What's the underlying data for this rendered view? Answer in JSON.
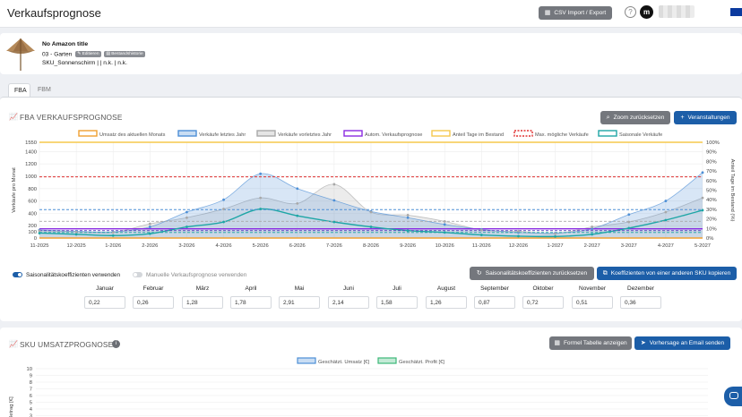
{
  "header": {
    "title": "Verkaufsprognose",
    "csv_button": "CSV Import / Export",
    "help_symbol": "?",
    "logo_text": "m"
  },
  "product": {
    "title": "No Amazon title",
    "category": "03 - Garten",
    "edit_tag": "Editieren",
    "history_tag": "Bestandshistorie",
    "sku_line": "SKU_Sonnenschirm | | n.k. | n.k."
  },
  "tabs": [
    {
      "label": "FBA",
      "active": true
    },
    {
      "label": "FBM",
      "active": false
    }
  ],
  "fba": {
    "title": "FBA VERKAUFSPROGNOSE",
    "zoom_reset": "Zoom zurücksetzen",
    "events_button": "Veranstaltungen",
    "seasonal_toggle_label": "Saisonalitätskoeffizienten verwenden",
    "seasonal_toggle_on": true,
    "manual_toggle_label": "Manuelle Verkaufsprognose verwenden",
    "manual_toggle_on": false,
    "reset_coef_button": "Saisonalitätskoeffizienten zurücksetzen",
    "copy_coef_button": "Koeffizienten von einer anderen SKU kopieren",
    "months": [
      {
        "label": "Januar",
        "value": "0,22"
      },
      {
        "label": "Februar",
        "value": "0,26"
      },
      {
        "label": "März",
        "value": "1,28"
      },
      {
        "label": "April",
        "value": "1,78"
      },
      {
        "label": "Mai",
        "value": "2,91"
      },
      {
        "label": "Juni",
        "value": "2,14"
      },
      {
        "label": "Juli",
        "value": "1,58"
      },
      {
        "label": "August",
        "value": "1,26"
      },
      {
        "label": "September",
        "value": "0,87"
      },
      {
        "label": "Oktober",
        "value": "0,72"
      },
      {
        "label": "November",
        "value": "0,51"
      },
      {
        "label": "Dezember",
        "value": "0,36"
      }
    ]
  },
  "sku": {
    "title": "SKU UMSATZPROGNOSE",
    "formula_button": "Formel Tabelle anzeigen",
    "email_button": "Vorhersage an Email senden"
  },
  "colors": {
    "primary": "#1c5ea8",
    "gray_button": "#74777d",
    "orange": "#f0a030",
    "blue": "#4d8fd6",
    "gray": "#a8a8a8",
    "purple": "#8a2be2",
    "yellow": "#f5c84c",
    "red": "#e03030",
    "teal": "#1ea6a6",
    "green": "#3cb878"
  },
  "chart_data": [
    {
      "type": "line",
      "title": "",
      "ylabel": "Verkäufe pro Monat",
      "y2label": "Anteil Tage im Bestand (%)",
      "ylim": [
        0,
        1550
      ],
      "yticks": [
        0,
        100,
        200,
        400,
        600,
        800,
        1000,
        1200,
        1400,
        1550
      ],
      "y2lim": [
        0,
        100
      ],
      "y2ticks": [
        "0%",
        "10%",
        "20%",
        "30%",
        "40%",
        "50%",
        "60%",
        "70%",
        "80%",
        "90%",
        "100%"
      ],
      "categories": [
        "11-2025",
        "12-2025",
        "1-2026",
        "2-2026",
        "3-2026",
        "4-2026",
        "5-2026",
        "6-2026",
        "7-2026",
        "8-2026",
        "9-2026",
        "10-2026",
        "11-2026",
        "12-2026",
        "1-2027",
        "2-2027",
        "3-2027",
        "4-2027",
        "5-2027"
      ],
      "grid": true,
      "legend": "top",
      "series": [
        {
          "name": "Umsatz des aktuellen Monats",
          "color": "#f0a030",
          "style": "line",
          "values": [
            0,
            0,
            0,
            0,
            0,
            0,
            0,
            0,
            0,
            0,
            0,
            0,
            0,
            0,
            0,
            0,
            0,
            0,
            0
          ]
        },
        {
          "name": "Verkäufe letztes Jahr",
          "color": "#4d8fd6",
          "style": "area",
          "values": [
            130,
            110,
            100,
            180,
            420,
            620,
            1040,
            800,
            610,
            430,
            330,
            220,
            140,
            90,
            80,
            150,
            380,
            600,
            1060
          ]
        },
        {
          "name": "Verkäufe vorletztes Jahr",
          "color": "#a8a8a8",
          "style": "area",
          "values": [
            120,
            100,
            90,
            230,
            330,
            470,
            650,
            560,
            870,
            420,
            370,
            270,
            130,
            110,
            70,
            180,
            260,
            420,
            650
          ]
        },
        {
          "name": "Autom. Verkaufsprognose",
          "color": "#8a2be2",
          "style": "line",
          "values": [
            150,
            150,
            150,
            150,
            150,
            150,
            150,
            150,
            150,
            150,
            150,
            150,
            150,
            150,
            150,
            150,
            150,
            150,
            150
          ]
        },
        {
          "name": "Anteil Tage im Bestand",
          "color": "#f5c84c",
          "style": "line",
          "axis": "right",
          "values": [
            100,
            100,
            100,
            100,
            100,
            100,
            100,
            100,
            100,
            100,
            100,
            100,
            100,
            100,
            100,
            100,
            100,
            100,
            100
          ]
        },
        {
          "name": "Max. mögliche Verkäufe",
          "color": "#e03030",
          "style": "dashed",
          "values": [
            990,
            990,
            990,
            990,
            990,
            990,
            990,
            990,
            990,
            990,
            990,
            990,
            990,
            990,
            990,
            990,
            990,
            990,
            990
          ]
        },
        {
          "name": "Saisonale Verkäufe",
          "color": "#1ea6a6",
          "style": "line",
          "values": [
            80,
            60,
            40,
            70,
            180,
            260,
            470,
            360,
            260,
            180,
            120,
            90,
            50,
            30,
            25,
            60,
            160,
            290,
            450
          ]
        }
      ],
      "reference_lines": [
        {
          "color": "#4d8fd6",
          "style": "dashed",
          "value": 460
        },
        {
          "color": "#a8a8a8",
          "style": "dashed",
          "value": 270
        },
        {
          "color": "#5b3fbf",
          "style": "dashed",
          "value": 120
        },
        {
          "color": "#1ea6a6",
          "style": "dashed",
          "value": 90
        }
      ]
    },
    {
      "type": "line",
      "title": "",
      "ylabel": "Betrag [€]",
      "ylim": [
        0,
        10
      ],
      "yticks": [
        3,
        4,
        5,
        6,
        7,
        8,
        9,
        10
      ],
      "legend": "top",
      "series": [
        {
          "name": "Geschätzt. Umsatz [€]",
          "color": "#4d8fd6",
          "values": []
        },
        {
          "name": "Geschätzt. Profit [€]",
          "color": "#3cb878",
          "values": []
        }
      ]
    }
  ]
}
